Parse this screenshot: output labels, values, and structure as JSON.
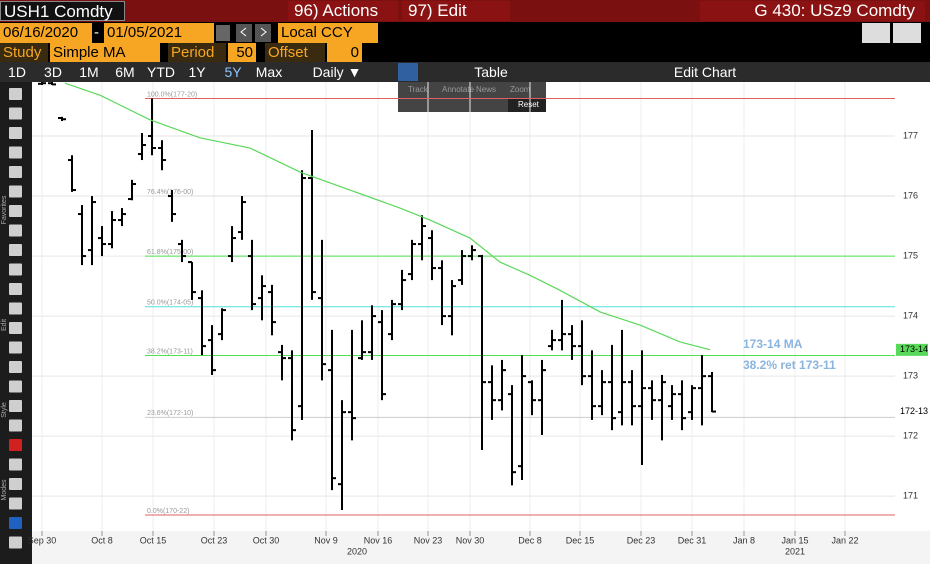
{
  "header": {
    "ticker": "USH1 Comdty",
    "actions": "96) Actions",
    "edit": "97) Edit",
    "function": "G 430: USz9 Comdty"
  },
  "date_row": {
    "start": "06/16/2020",
    "separator": "-",
    "end": "01/05/2021",
    "currency": "Local CCY"
  },
  "study_row": {
    "study_label": "Study",
    "study": "Simple MA",
    "period_label": "Period",
    "period": "50",
    "offset_label": "Offset",
    "offset": "0"
  },
  "range_row": {
    "ranges": [
      "1D",
      "3D",
      "1M",
      "6M",
      "YTD",
      "1Y",
      "5Y",
      "Max"
    ],
    "frequency": "Daily ▼",
    "table": "Table",
    "edit_chart": "Edit Chart"
  },
  "overlay_menu": [
    "Track",
    "Annotate",
    "News",
    "Zoom",
    "Reset"
  ],
  "side_labels": [
    "Favorites",
    "Edit",
    "Style",
    "Modes"
  ],
  "chart": {
    "type": "ohlc",
    "xlim": [
      -1,
      85.3
    ],
    "ylim": [
      170.42,
      177.9
    ],
    "yticks": [
      171,
      172,
      173,
      174,
      175,
      176,
      177
    ],
    "xticks": [
      {
        "value": 0,
        "label": "Sep 30"
      },
      {
        "value": 6,
        "label": "Oct 8"
      },
      {
        "value": 11.1,
        "label": "Oct 15"
      },
      {
        "value": 17.2,
        "label": "Oct 23"
      },
      {
        "value": 22.4,
        "label": "Oct 30"
      },
      {
        "value": 28.4,
        "label": "Nov 9"
      },
      {
        "value": 33.6,
        "label": "Nov 16"
      },
      {
        "value": 38.6,
        "label": "Nov 23"
      },
      {
        "value": 42.8,
        "label": "Nov 30"
      },
      {
        "value": 48.8,
        "label": "Dec 8"
      },
      {
        "value": 53.8,
        "label": "Dec 15"
      },
      {
        "value": 59.9,
        "label": "Dec 23"
      },
      {
        "value": 65,
        "label": "Dec 31"
      },
      {
        "value": 70.2,
        "label": "Jan 8"
      },
      {
        "value": 75.3,
        "label": "Jan 15"
      },
      {
        "value": 80.3,
        "label": "Jan 22"
      }
    ],
    "years": [
      {
        "value": 31.5,
        "label": "2020"
      },
      {
        "value": 75.3,
        "label": "2021"
      }
    ],
    "grid": true,
    "bar_color": "#000000",
    "bars": [
      [
        177.87,
        177.9,
        177.85,
        177.88
      ],
      [
        177.88,
        177.9,
        177.85,
        177.86
      ],
      [
        177.3,
        177.32,
        177.25,
        177.28
      ],
      [
        176.6,
        176.68,
        176.07,
        176.1
      ],
      [
        175.7,
        175.85,
        174.85,
        175.0
      ],
      [
        175.1,
        176.0,
        174.85,
        175.9
      ],
      [
        175.3,
        175.5,
        175.0,
        175.2
      ],
      [
        175.2,
        175.75,
        175.13,
        175.6
      ],
      [
        175.6,
        175.8,
        175.5,
        175.7
      ],
      [
        175.95,
        176.27,
        175.93,
        176.2
      ],
      [
        176.7,
        177.05,
        176.6,
        176.85
      ],
      [
        177.0,
        177.625,
        176.68,
        176.8
      ],
      [
        176.8,
        176.93,
        176.43,
        176.6
      ],
      [
        176.0,
        176.1,
        175.57,
        175.7
      ],
      [
        175.2,
        175.27,
        174.9,
        175.0
      ],
      [
        174.9,
        174.9,
        174.27,
        174.4
      ],
      [
        174.3,
        174.43,
        173.35,
        173.5
      ],
      [
        173.6,
        173.85,
        173.02,
        173.1
      ],
      [
        173.7,
        174.13,
        173.6,
        174.1
      ],
      [
        175.0,
        175.5,
        174.9,
        175.3
      ],
      [
        175.4,
        176.0,
        175.27,
        175.9
      ],
      [
        175.0,
        175.27,
        174.1,
        174.2
      ],
      [
        174.3,
        174.68,
        173.93,
        174.5
      ],
      [
        174.4,
        174.52,
        173.68,
        173.9
      ],
      [
        173.4,
        173.52,
        172.93,
        173.3
      ],
      [
        173.3,
        173.43,
        171.93,
        172.1
      ],
      [
        172.5,
        176.43,
        172.27,
        176.3
      ],
      [
        176.3,
        177.1,
        174.27,
        174.4
      ],
      [
        174.3,
        175.27,
        172.93,
        173.2
      ],
      [
        173.1,
        173.77,
        171.1,
        171.3
      ],
      [
        171.2,
        172.6,
        170.77,
        172.4
      ],
      [
        172.4,
        173.77,
        171.93,
        172.3
      ],
      [
        173.3,
        173.93,
        173.27,
        173.4
      ],
      [
        173.4,
        174.18,
        173.27,
        174.0
      ],
      [
        173.9,
        174.1,
        172.6,
        172.7
      ],
      [
        173.7,
        174.27,
        173.6,
        174.2
      ],
      [
        174.2,
        174.77,
        174.1,
        174.6
      ],
      [
        174.7,
        175.27,
        174.6,
        175.2
      ],
      [
        175.2,
        175.68,
        174.93,
        175.5
      ],
      [
        175.3,
        175.43,
        174.6,
        174.8
      ],
      [
        174.8,
        174.93,
        173.85,
        174.0
      ],
      [
        174.0,
        174.6,
        173.68,
        174.5
      ],
      [
        174.6,
        175.1,
        174.52,
        175.0
      ],
      [
        175.0,
        175.18,
        174.93,
        175.1
      ],
      [
        175.0,
        175.02,
        171.77,
        172.9
      ],
      [
        172.9,
        173.18,
        172.27,
        172.6
      ],
      [
        172.6,
        173.27,
        172.43,
        173.1
      ],
      [
        172.7,
        172.85,
        171.18,
        171.4
      ],
      [
        171.5,
        173.35,
        171.27,
        173.0
      ],
      [
        172.9,
        172.93,
        172.35,
        172.6
      ],
      [
        172.6,
        173.27,
        172.02,
        173.1
      ],
      [
        173.5,
        173.77,
        173.43,
        173.6
      ],
      [
        173.6,
        174.27,
        173.43,
        173.7
      ],
      [
        173.7,
        173.85,
        173.27,
        173.5
      ],
      [
        173.5,
        173.93,
        172.85,
        173.0
      ],
      [
        173.0,
        173.43,
        172.27,
        172.5
      ],
      [
        172.5,
        173.1,
        172.35,
        172.9
      ],
      [
        172.9,
        173.52,
        172.1,
        172.3
      ],
      [
        172.4,
        173.77,
        172.18,
        172.9
      ],
      [
        172.9,
        173.1,
        172.18,
        172.5
      ],
      [
        172.5,
        173.43,
        171.52,
        172.8
      ],
      [
        172.8,
        172.93,
        172.27,
        172.6
      ],
      [
        172.6,
        173.02,
        171.93,
        172.9
      ],
      [
        172.5,
        172.85,
        172.27,
        172.7
      ],
      [
        172.7,
        172.93,
        172.1,
        172.3
      ],
      [
        172.4,
        172.85,
        172.27,
        172.8
      ],
      [
        172.8,
        173.35,
        172.18,
        173.0
      ],
      [
        173.0,
        173.07,
        172.4,
        172.41
      ]
    ],
    "ma": {
      "name": "173-14 MA",
      "color": "#5ad85a",
      "x": [
        2.3,
        5.8,
        10.8,
        15.8,
        20.8,
        25.8,
        30.8,
        35.8,
        38.8,
        42.8,
        45.8,
        48.8,
        51.8,
        55.8,
        59.8,
        63.8,
        66.8
      ],
      "values": [
        177.88,
        177.68,
        177.27,
        176.97,
        176.8,
        176.4,
        176.1,
        175.8,
        175.6,
        175.3,
        174.9,
        174.68,
        174.43,
        174.07,
        173.85,
        173.57,
        173.44
      ]
    },
    "fib_start": 10.3,
    "fib": [
      {
        "label": "100.0%(177-20)",
        "value": 177.625,
        "color": "#e06060"
      },
      {
        "label": "76.4%(176-00)",
        "value": 176.0,
        "color": "#dddddd"
      },
      {
        "label": "61.8%(175-00)",
        "value": 175.0,
        "color": "#50e050"
      },
      {
        "label": "50.0%(174-05)",
        "value": 174.156,
        "color": "#50e0e0"
      },
      {
        "label": "38.2%(173-11)",
        "value": 173.344,
        "color": "#50e050"
      },
      {
        "label": "23.6%(172-10)",
        "value": 172.3125,
        "color": "#cccccc"
      },
      {
        "label": "0.0%(170-22)",
        "value": 170.6875,
        "color": "#e06060"
      }
    ],
    "fib_note": "38.2% ret 173-11",
    "price_tags": [
      {
        "label": "173-14",
        "value": 173.4375,
        "color": "#5ad85a"
      },
      {
        "label": "172-13",
        "value": 172.406,
        "color": "#ffffff"
      }
    ]
  }
}
